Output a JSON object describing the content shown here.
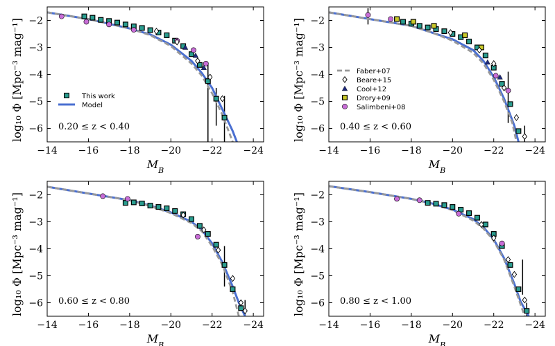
{
  "figure": {
    "background": "#ffffff"
  },
  "chart_data": [
    {
      "type": "scatter",
      "annotation": "0.20 ≤ z < 0.40",
      "xlabel": "M_B",
      "ylabel": "log10 Φ [Mpc^-3 mag^-1]",
      "xlim": [
        -14,
        -24.5
      ],
      "ylim": [
        -6.5,
        -1.5
      ],
      "xticks": [
        -14,
        -16,
        -18,
        -20,
        -22,
        -24
      ],
      "yticks": [
        -2,
        -3,
        -4,
        -5,
        -6
      ],
      "legend": {
        "position": "lower-left",
        "entries": [
          {
            "label": "This work",
            "marker": "square",
            "color": "#2a9d8f"
          },
          {
            "label": "Model",
            "marker": "line",
            "color": "#4a6fd1"
          }
        ]
      },
      "series": [
        {
          "name": "Model",
          "kind": "line",
          "color": "#4a6fd1",
          "x": [
            -14.0,
            -16.0,
            -18.0,
            -19.0,
            -20.0,
            -21.0,
            -21.5,
            -22.0,
            -22.5,
            -23.0,
            -23.2
          ],
          "y": [
            -1.7,
            -1.95,
            -2.3,
            -2.52,
            -2.9,
            -3.5,
            -3.95,
            -4.5,
            -5.3,
            -6.1,
            -6.5
          ]
        },
        {
          "name": "Faber+07",
          "kind": "dashed",
          "color": "#999999",
          "x": [
            -14.0,
            -16.0,
            -18.0,
            -19.0,
            -20.0,
            -21.0,
            -21.5,
            -22.0,
            -22.5,
            -22.8,
            -23.0
          ],
          "y": [
            -1.7,
            -1.95,
            -2.3,
            -2.55,
            -2.95,
            -3.6,
            -4.05,
            -4.7,
            -5.5,
            -6.1,
            -6.5
          ]
        },
        {
          "name": "This work",
          "kind": "square",
          "color": "#2a9d8f",
          "x": [
            -15.8,
            -16.2,
            -16.6,
            -17.0,
            -17.4,
            -17.8,
            -18.2,
            -18.6,
            -19.0,
            -19.4,
            -19.8,
            -20.2,
            -20.6,
            -21.0,
            -21.4,
            -21.8,
            -22.2,
            -22.6
          ],
          "y": [
            -1.85,
            -1.9,
            -1.98,
            -2.02,
            -2.08,
            -2.15,
            -2.22,
            -2.28,
            -2.36,
            -2.45,
            -2.55,
            -2.75,
            -2.95,
            -3.25,
            -3.65,
            -4.25,
            -4.9,
            -5.6
          ]
        },
        {
          "name": "Salimbeni+08",
          "kind": "circle",
          "color": "#c86dd7",
          "x": [
            -14.7,
            -15.9,
            -17.0,
            -18.2,
            -20.3,
            -21.1,
            -21.7
          ],
          "y": [
            -1.85,
            -2.05,
            -2.15,
            -2.35,
            -2.75,
            -3.1,
            -3.6
          ]
        },
        {
          "name": "Beare+15",
          "kind": "diamond",
          "color": "#ffffff",
          "x": [
            -19.3,
            -20.3,
            -21.3,
            -21.9,
            -22.5
          ],
          "y": [
            -2.4,
            -2.8,
            -3.5,
            -4.1,
            -4.9
          ]
        },
        {
          "name": "Cool+12",
          "kind": "triangle",
          "color": "#1f2a7a",
          "x": [
            -20.7,
            -21.2,
            -21.6
          ],
          "y": [
            -3.0,
            -3.3,
            -3.75
          ]
        }
      ],
      "error_bars": [
        {
          "x": -21.8,
          "y_low": -6.5,
          "y_high": -3.6
        },
        {
          "x": -22.2,
          "y_low": -5.9,
          "y_high": -4.5
        },
        {
          "x": -22.6,
          "y_low": -6.5,
          "y_high": -4.8
        }
      ]
    },
    {
      "type": "scatter",
      "annotation": "0.40 ≤ z < 0.60",
      "xlabel": "M_B",
      "ylabel": "log10 Φ [Mpc^-3 mag^-1]",
      "xlim": [
        -14,
        -24.5
      ],
      "ylim": [
        -6.5,
        -1.5
      ],
      "xticks": [
        -14,
        -16,
        -18,
        -20,
        -22,
        -24
      ],
      "yticks": [
        -2,
        -3,
        -4,
        -5,
        -6
      ],
      "legend": {
        "position": "center-left",
        "entries": [
          {
            "label": "Faber+07",
            "marker": "dashed",
            "color": "#999999"
          },
          {
            "label": "Beare+15",
            "marker": "diamond",
            "color": "#ffffff"
          },
          {
            "label": "Cool+12",
            "marker": "triangle",
            "color": "#1f2a7a"
          },
          {
            "label": "Drory+09",
            "marker": "square",
            "color": "#c9c92a"
          },
          {
            "label": "Salimbeni+08",
            "marker": "circle",
            "color": "#c86dd7"
          }
        ]
      },
      "series": [
        {
          "name": "Model",
          "kind": "line",
          "color": "#4a6fd1",
          "x": [
            -14.0,
            -16.0,
            -18.0,
            -19.0,
            -20.0,
            -21.0,
            -21.5,
            -22.0,
            -22.5,
            -23.0,
            -23.2
          ],
          "y": [
            -1.7,
            -1.95,
            -2.2,
            -2.45,
            -2.7,
            -3.1,
            -3.5,
            -4.1,
            -4.9,
            -5.9,
            -6.5
          ]
        },
        {
          "name": "Faber+07",
          "kind": "dashed",
          "color": "#999999",
          "x": [
            -14.0,
            -16.0,
            -18.0,
            -19.0,
            -20.0,
            -21.0,
            -21.5,
            -22.0,
            -22.5,
            -22.9,
            -23.1
          ],
          "y": [
            -1.7,
            -1.95,
            -2.2,
            -2.45,
            -2.75,
            -3.2,
            -3.6,
            -4.2,
            -5.0,
            -5.8,
            -6.5
          ]
        },
        {
          "name": "This work",
          "kind": "square",
          "color": "#2a9d8f",
          "x": [
            -17.6,
            -18.0,
            -18.4,
            -18.8,
            -19.2,
            -19.6,
            -20.0,
            -20.4,
            -20.8,
            -21.2,
            -21.6,
            -22.0,
            -22.4,
            -22.8,
            -23.2
          ],
          "y": [
            -2.05,
            -2.12,
            -2.2,
            -2.26,
            -2.32,
            -2.4,
            -2.5,
            -2.62,
            -2.78,
            -3.0,
            -3.3,
            -3.75,
            -4.35,
            -5.1,
            -6.1
          ]
        },
        {
          "name": "Drory+09",
          "kind": "square",
          "color": "#c9c92a",
          "x": [
            -17.3,
            -18.1,
            -19.1,
            -20.6,
            -21.4
          ],
          "y": [
            -1.95,
            -2.05,
            -2.2,
            -2.55,
            -3.0
          ]
        },
        {
          "name": "Salimbeni+08",
          "kind": "circle",
          "color": "#c86dd7",
          "x": [
            -15.9,
            -17.0,
            -22.1,
            -22.7
          ],
          "y": [
            -1.8,
            -1.95,
            -4.05,
            -4.6
          ]
        },
        {
          "name": "Beare+15",
          "kind": "diamond",
          "color": "#ffffff",
          "x": [
            -19.9,
            -21.3,
            -22.0,
            -22.5,
            -23.1,
            -23.5
          ],
          "y": [
            -2.45,
            -3.1,
            -3.6,
            -4.5,
            -5.6,
            -6.3
          ]
        },
        {
          "name": "Cool+12",
          "kind": "triangle",
          "color": "#1f2a7a",
          "x": [
            -21.7,
            -22.3
          ],
          "y": [
            -3.55,
            -4.1
          ]
        }
      ],
      "error_bars": [
        {
          "x": -15.9,
          "y_low": -2.15,
          "y_high": -1.55
        },
        {
          "x": -22.7,
          "y_low": -5.8,
          "y_high": -3.9
        },
        {
          "x": -23.5,
          "y_low": -6.5,
          "y_high": -5.9
        }
      ]
    },
    {
      "type": "scatter",
      "annotation": "0.60 ≤ z < 0.80",
      "xlabel": "M_B",
      "ylabel": "log10 Φ [Mpc^-3 mag^-1]",
      "xlim": [
        -14,
        -24.5
      ],
      "ylim": [
        -6.5,
        -1.5
      ],
      "xticks": [
        -14,
        -16,
        -18,
        -20,
        -22,
        -24
      ],
      "yticks": [
        -2,
        -3,
        -4,
        -5,
        -6
      ],
      "series": [
        {
          "name": "Model",
          "kind": "line",
          "color": "#4a6fd1",
          "x": [
            -14.0,
            -16.0,
            -18.0,
            -19.0,
            -20.0,
            -21.0,
            -21.5,
            -22.0,
            -22.5,
            -23.0,
            -23.3,
            -23.6
          ],
          "y": [
            -1.7,
            -1.95,
            -2.2,
            -2.4,
            -2.65,
            -3.0,
            -3.3,
            -3.8,
            -4.5,
            -5.4,
            -6.0,
            -6.5
          ]
        },
        {
          "name": "Faber+07",
          "kind": "dashed",
          "color": "#999999",
          "x": [
            -14.0,
            -16.0,
            -18.0,
            -19.0,
            -20.0,
            -21.0,
            -21.5,
            -22.0,
            -22.5,
            -23.0,
            -23.3
          ],
          "y": [
            -1.7,
            -1.95,
            -2.2,
            -2.42,
            -2.68,
            -3.05,
            -3.35,
            -3.9,
            -4.6,
            -5.6,
            -6.5
          ]
        },
        {
          "name": "This work",
          "kind": "square",
          "color": "#2a9d8f",
          "x": [
            -17.8,
            -18.2,
            -18.6,
            -19.0,
            -19.4,
            -19.8,
            -20.2,
            -20.6,
            -21.0,
            -21.4,
            -21.8,
            -22.2,
            -22.6,
            -23.0,
            -23.4
          ],
          "y": [
            -2.3,
            -2.28,
            -2.32,
            -2.4,
            -2.45,
            -2.5,
            -2.6,
            -2.72,
            -2.9,
            -3.15,
            -3.45,
            -3.85,
            -4.6,
            -5.5,
            -6.2
          ]
        },
        {
          "name": "Salimbeni+08",
          "kind": "circle",
          "color": "#c86dd7",
          "x": [
            -16.7,
            -17.9,
            -21.3
          ],
          "y": [
            -2.05,
            -2.15,
            -3.55
          ]
        },
        {
          "name": "Beare+15",
          "kind": "diamond",
          "color": "#ffffff",
          "x": [
            -20.6,
            -21.6,
            -22.3,
            -23.0,
            -23.4,
            -23.6
          ],
          "y": [
            -2.75,
            -3.3,
            -4.05,
            -5.1,
            -6.0,
            -6.3
          ]
        }
      ],
      "error_bars": [
        {
          "x": -22.6,
          "y_low": -5.4,
          "y_high": -3.9
        },
        {
          "x": -23.6,
          "y_low": -6.5,
          "y_high": -5.9
        }
      ]
    },
    {
      "type": "scatter",
      "annotation": "0.80 ≤ z < 1.00",
      "xlabel": "M_B",
      "ylabel": "log10 Φ [Mpc^-3 mag^-1]",
      "xlim": [
        -14,
        -24.5
      ],
      "ylim": [
        -6.5,
        -1.5
      ],
      "xticks": [
        -14,
        -16,
        -18,
        -20,
        -22,
        -24
      ],
      "yticks": [
        -2,
        -3,
        -4,
        -5,
        -6
      ],
      "series": [
        {
          "name": "Model",
          "kind": "line",
          "color": "#4a6fd1",
          "x": [
            -14.0,
            -16.0,
            -18.0,
            -19.0,
            -20.0,
            -21.0,
            -21.5,
            -22.0,
            -22.5,
            -23.0,
            -23.3,
            -23.7
          ],
          "y": [
            -1.68,
            -1.9,
            -2.15,
            -2.32,
            -2.55,
            -2.9,
            -3.2,
            -3.65,
            -4.35,
            -5.3,
            -5.95,
            -6.5
          ]
        },
        {
          "name": "Faber+07",
          "kind": "dashed",
          "color": "#999999",
          "x": [
            -14.0,
            -16.0,
            -18.0,
            -19.0,
            -20.0,
            -21.0,
            -21.5,
            -22.0,
            -22.5,
            -23.0,
            -23.5
          ],
          "y": [
            -1.68,
            -1.9,
            -2.15,
            -2.33,
            -2.57,
            -2.95,
            -3.25,
            -3.7,
            -4.4,
            -5.4,
            -6.5
          ]
        },
        {
          "name": "This work",
          "kind": "square",
          "color": "#2a9d8f",
          "x": [
            -18.8,
            -19.2,
            -19.6,
            -20.0,
            -20.4,
            -20.8,
            -21.2,
            -21.6,
            -22.0,
            -22.4,
            -22.8,
            -23.2,
            -23.6
          ],
          "y": [
            -2.3,
            -2.33,
            -2.38,
            -2.45,
            -2.55,
            -2.68,
            -2.85,
            -3.1,
            -3.45,
            -3.9,
            -4.6,
            -5.5,
            -6.3
          ]
        },
        {
          "name": "Salimbeni+08",
          "kind": "circle",
          "color": "#c86dd7",
          "x": [
            -17.3,
            -18.4,
            -20.3,
            -22.4
          ],
          "y": [
            -2.15,
            -2.2,
            -2.7,
            -3.8
          ]
        },
        {
          "name": "Beare+15",
          "kind": "diamond",
          "color": "#ffffff",
          "x": [
            -21.4,
            -22.0,
            -22.7,
            -23.0,
            -23.5
          ],
          "y": [
            -3.1,
            -3.6,
            -4.4,
            -4.95,
            -5.9
          ]
        }
      ],
      "error_bars": [
        {
          "x": -23.4,
          "y_low": -5.7,
          "y_high": -4.4
        },
        {
          "x": -23.6,
          "y_low": -6.5,
          "y_high": -6.0
        }
      ]
    }
  ]
}
